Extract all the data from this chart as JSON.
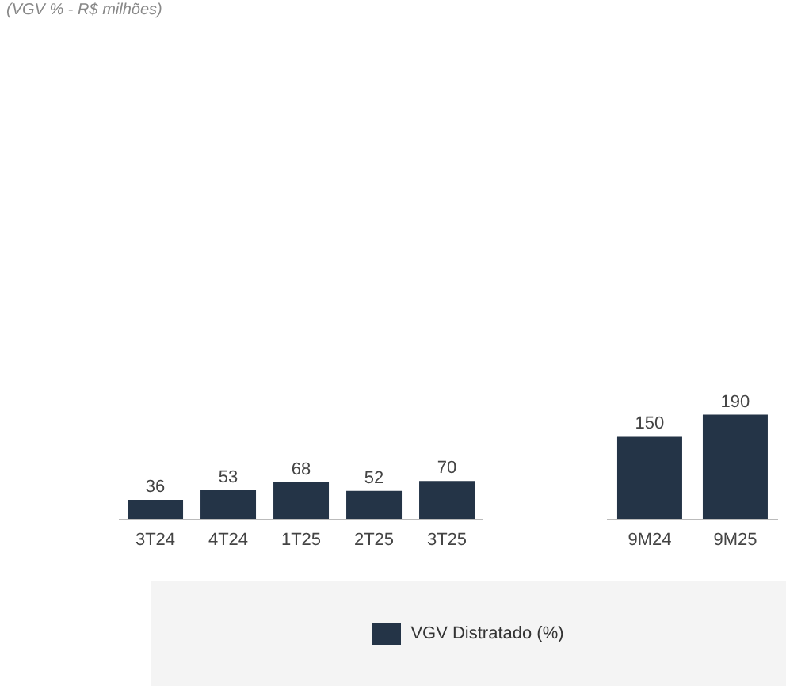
{
  "chart_data": [
    {
      "type": "bar",
      "subtitle": "(VGV % - R$ milhões)",
      "categories": [
        "3T24",
        "4T24",
        "1T25",
        "2T25",
        "3T25"
      ],
      "series": [
        {
          "name": "VGV Distratado (%)",
          "color": "#243447",
          "values": [
            36,
            53,
            68,
            52,
            70
          ]
        }
      ],
      "tick_labels": "x",
      "data_labels": true,
      "legend": "bottom",
      "grid": false
    },
    {
      "type": "bar",
      "categories": [
        "9M24",
        "9M25"
      ],
      "series": [
        {
          "color": "#243447",
          "values": [
            150,
            190
          ]
        }
      ],
      "tick_labels": "x",
      "data_labels": true,
      "grid": false
    }
  ]
}
